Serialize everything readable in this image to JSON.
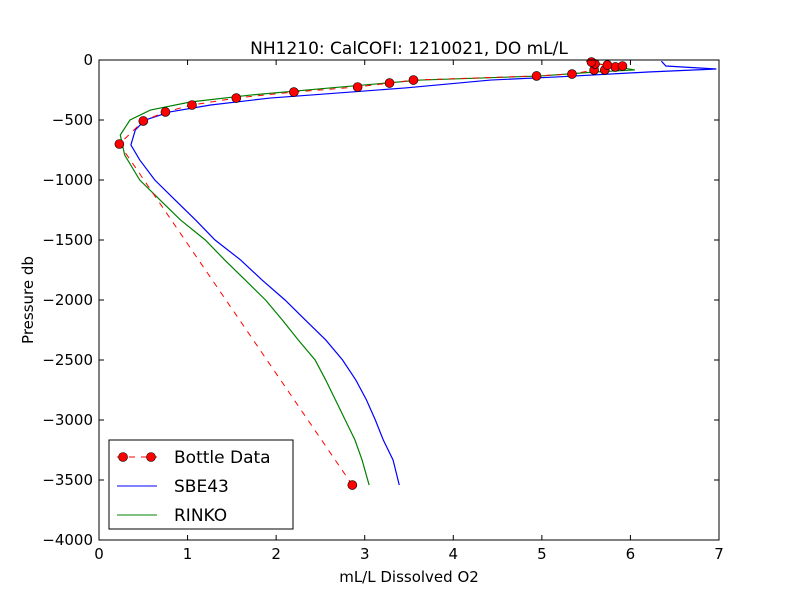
{
  "chart_data": {
    "type": "line",
    "title": "NH1210: CalCOFI: 1210021, DO mL/L",
    "xlabel": "mL/L Dissolved O2",
    "ylabel": "Pressure db",
    "xlim": [
      0,
      7
    ],
    "ylim": [
      -4000,
      0
    ],
    "xticks": [
      "0",
      "1",
      "2",
      "3",
      "4",
      "5",
      "6",
      "7"
    ],
    "yticks": [
      "0",
      "−500",
      "−1000",
      "−1500",
      "−2000",
      "−2500",
      "−3000",
      "−3500",
      "−4000"
    ],
    "legend_position": "lower-left",
    "grid": false,
    "series": [
      {
        "name": "Bottle Data",
        "color": "#ff0000",
        "style": "dashed-markers",
        "x": [
          2.86,
          0.23,
          0.5,
          0.75,
          1.05,
          1.55,
          2.2,
          2.92,
          3.28,
          3.55,
          4.94,
          5.34,
          5.59,
          5.71,
          5.83,
          5.91,
          5.74,
          5.6,
          5.56
        ],
        "y": [
          -3542,
          -700,
          -508,
          -433,
          -375,
          -317,
          -267,
          -225,
          -192,
          -167,
          -133,
          -117,
          -83,
          -83,
          -58,
          -50,
          -42,
          -33,
          -17
        ]
      },
      {
        "name": "SBE43",
        "color": "#0000ff",
        "style": "solid",
        "x": [
          6.35,
          6.4,
          6.97,
          6.2,
          5.2,
          4.42,
          3.46,
          2.84,
          1.93,
          1.26,
          0.8,
          0.52,
          0.41,
          0.36,
          0.46,
          0.63,
          0.86,
          1.09,
          1.31,
          1.6,
          1.84,
          2.1,
          2.33,
          2.56,
          2.75,
          2.9,
          3.02,
          3.12,
          3.21,
          3.32,
          3.39
        ],
        "y": [
          -10,
          -50,
          -75,
          -100,
          -140,
          -167,
          -233,
          -267,
          -317,
          -375,
          -433,
          -500,
          -583,
          -708,
          -833,
          -1000,
          -1167,
          -1333,
          -1500,
          -1667,
          -1833,
          -2000,
          -2167,
          -2333,
          -2500,
          -2667,
          -2833,
          -3000,
          -3167,
          -3333,
          -3542
        ]
      },
      {
        "name": "RINKO",
        "color": "#008000",
        "style": "solid",
        "x": [
          5.5,
          5.7,
          6.05,
          5.6,
          4.99,
          3.63,
          2.61,
          1.71,
          1.03,
          0.58,
          0.35,
          0.24,
          0.29,
          0.46,
          0.69,
          0.92,
          1.2,
          1.42,
          1.65,
          1.88,
          2.07,
          2.25,
          2.44,
          2.56,
          2.67,
          2.78,
          2.89,
          2.97,
          3.05
        ],
        "y": [
          -10,
          -40,
          -83,
          -100,
          -133,
          -167,
          -233,
          -292,
          -350,
          -417,
          -500,
          -625,
          -792,
          -1000,
          -1167,
          -1333,
          -1500,
          -1667,
          -1833,
          -2000,
          -2167,
          -2333,
          -2500,
          -2667,
          -2833,
          -3000,
          -3167,
          -3333,
          -3542
        ]
      }
    ]
  }
}
